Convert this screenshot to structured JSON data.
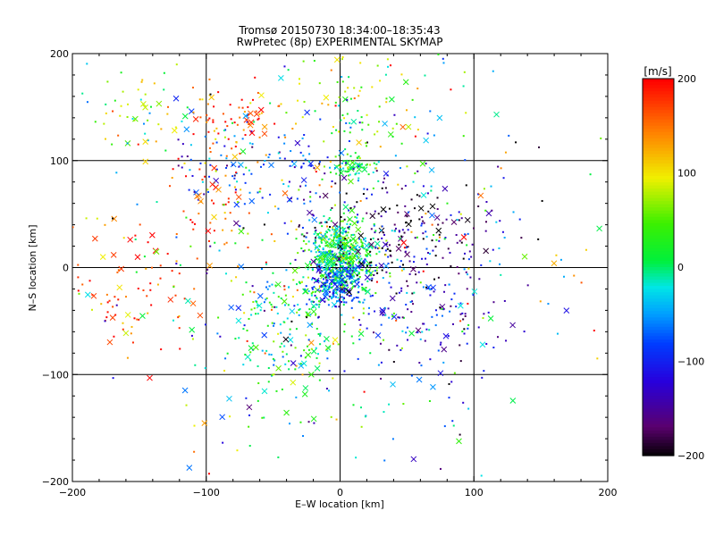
{
  "chart_data": {
    "type": "scatter",
    "title": "Tromsø 20150730 18:34:00–18:35:43",
    "subtitle": "RwPretec (8p) EXPERIMENTAL SKYMAP",
    "xlabel": "E–W location [km]",
    "ylabel": "N–S location [km]",
    "xlim": [
      -200,
      200
    ],
    "ylim": [
      -200,
      200
    ],
    "xticks": [
      -200,
      -100,
      0,
      100,
      200
    ],
    "yticks": [
      -200,
      -100,
      0,
      100,
      200
    ],
    "grid": true,
    "colorbar": {
      "label": "[m/s]",
      "min": -200,
      "max": 200,
      "ticks": [
        200,
        100,
        0,
        -100,
        -200
      ]
    },
    "markers": [
      "dot",
      "x"
    ],
    "clusters": [
      {
        "x": 0,
        "y": 10,
        "sx": 12,
        "sy": 18,
        "n": 520,
        "v": 10,
        "vs": 40
      },
      {
        "x": 0,
        "y": -15,
        "sx": 10,
        "sy": 12,
        "n": 180,
        "v": -90,
        "vs": 40
      },
      {
        "x": 10,
        "y": 95,
        "sx": 10,
        "sy": 5,
        "n": 60,
        "v": 20,
        "vs": 40
      },
      {
        "x": -60,
        "y": 100,
        "sx": 40,
        "sy": 20,
        "n": 110,
        "v": -80,
        "vs": 40
      },
      {
        "x": -80,
        "y": 140,
        "sx": 20,
        "sy": 15,
        "n": 70,
        "v": 170,
        "vs": 40
      },
      {
        "x": -40,
        "y": -60,
        "sx": 25,
        "sy": 30,
        "n": 170,
        "v": 10,
        "vs": 50
      },
      {
        "x": 40,
        "y": 30,
        "sx": 40,
        "sy": 30,
        "n": 220,
        "v": -170,
        "vs": 40
      },
      {
        "x": 60,
        "y": -30,
        "sx": 40,
        "sy": 40,
        "n": 150,
        "v": -110,
        "vs": 40
      },
      {
        "x": -150,
        "y": -20,
        "sx": 25,
        "sy": 30,
        "n": 80,
        "v": 170,
        "vs": 40
      },
      {
        "x": 20,
        "y": 160,
        "sx": 30,
        "sy": 30,
        "n": 100,
        "v": 60,
        "vs": 60
      },
      {
        "x": -150,
        "y": 150,
        "sx": 25,
        "sy": 20,
        "n": 50,
        "v": 80,
        "vs": 60
      },
      {
        "x": -90,
        "y": 60,
        "sx": 20,
        "sy": 30,
        "n": 60,
        "v": 160,
        "vs": 40
      },
      {
        "x": 0,
        "y": 0,
        "sx": 80,
        "sy": 90,
        "n": 450,
        "v": 0,
        "vs": 110
      }
    ]
  }
}
